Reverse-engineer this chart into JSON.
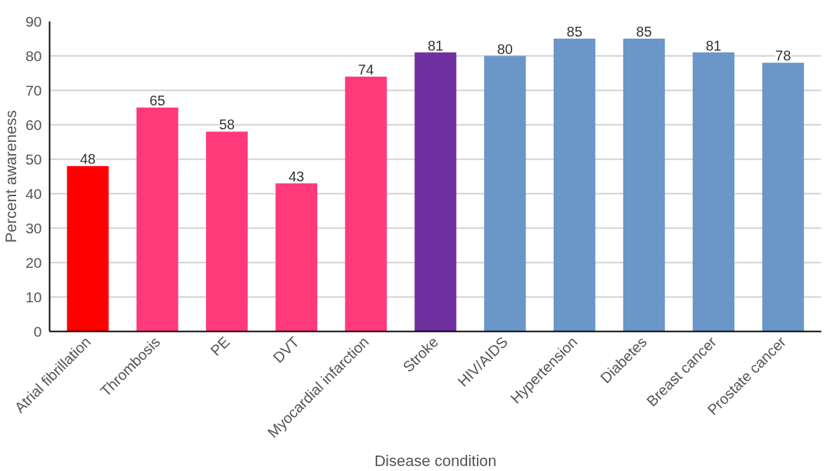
{
  "chart_data": {
    "type": "bar",
    "xlabel": "Disease condition",
    "ylabel": "Percent awareness",
    "categories": [
      "Atrial fibrillation",
      "Thrombosis",
      "PE",
      "DVT",
      "Myocardial infarction",
      "Stroke",
      "HIV/AIDS",
      "Hypertension",
      "Diabetes",
      "Breast cancer",
      "Prostate cancer"
    ],
    "values": [
      48,
      65,
      58,
      43,
      74,
      81,
      80,
      85,
      85,
      81,
      78
    ],
    "colors": [
      "#ff0000",
      "#ff3a7a",
      "#ff3a7a",
      "#ff3a7a",
      "#ff3a7a",
      "#6f2f9f",
      "#6b96c8",
      "#6b96c8",
      "#6b96c8",
      "#6b96c8",
      "#6b96c8"
    ],
    "ylim": [
      0,
      90
    ],
    "yticks": [
      0,
      10,
      20,
      30,
      40,
      50,
      60,
      70,
      80,
      90
    ],
    "grid": "y",
    "data_labels": true
  }
}
